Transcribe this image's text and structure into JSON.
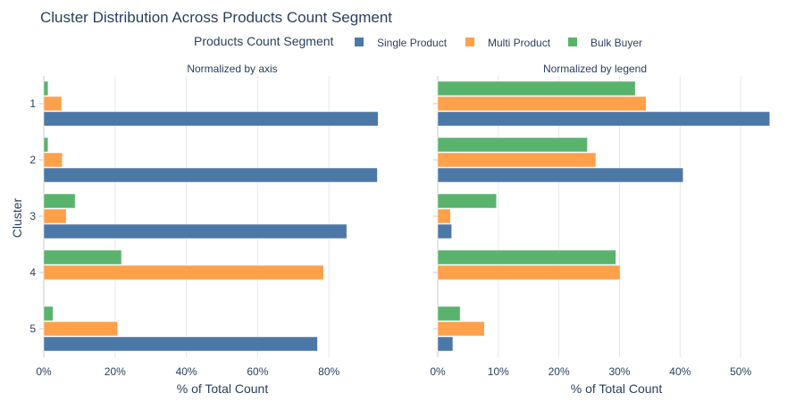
{
  "chart_data": {
    "type": "bar",
    "orientation": "horizontal",
    "title": "Cluster Distribution Across Products Count Segment",
    "legend_title": "Products Count Segment",
    "ylabel": "Cluster",
    "categories": [
      "1",
      "2",
      "3",
      "4",
      "5"
    ],
    "series_names": [
      "Single Product",
      "Multi Product",
      "Bulk Buyer"
    ],
    "colors": {
      "Single Product": "#4c78a8",
      "Multi Product": "#ffa04a",
      "Bulk Buyer": "#59b36c"
    },
    "panels": [
      {
        "subtitle": "Normalized by axis",
        "xlabel": "% of Total Count",
        "xlim": [
          0,
          100
        ],
        "xticks": [
          0,
          20,
          40,
          60,
          80
        ],
        "tick_labels": [
          "0%",
          "20%",
          "40%",
          "60%",
          "80%"
        ],
        "series": [
          {
            "name": "Single Product",
            "values": [
              93.8,
              93.6,
              85.0,
              null,
              76.8
            ]
          },
          {
            "name": "Multi Product",
            "values": [
              5.0,
              5.2,
              6.3,
              78.5,
              20.7
            ]
          },
          {
            "name": "Bulk Buyer",
            "values": [
              1.2,
              1.2,
              8.8,
              21.8,
              2.6
            ]
          }
        ]
      },
      {
        "subtitle": "Normalized by legend",
        "xlabel": "% of Total Count",
        "xlim": [
          0,
          57.5
        ],
        "xticks": [
          0,
          10,
          20,
          30,
          40,
          50
        ],
        "tick_labels": [
          "0%",
          "10%",
          "20%",
          "30%",
          "40%",
          "50%"
        ],
        "series": [
          {
            "name": "Single Product",
            "values": [
              54.8,
              40.5,
              2.3,
              null,
              2.5
            ]
          },
          {
            "name": "Multi Product",
            "values": [
              34.4,
              26.1,
              2.1,
              30.1,
              7.7
            ]
          },
          {
            "name": "Bulk Buyer",
            "values": [
              32.6,
              24.7,
              9.7,
              29.4,
              3.7
            ]
          }
        ]
      }
    ]
  }
}
